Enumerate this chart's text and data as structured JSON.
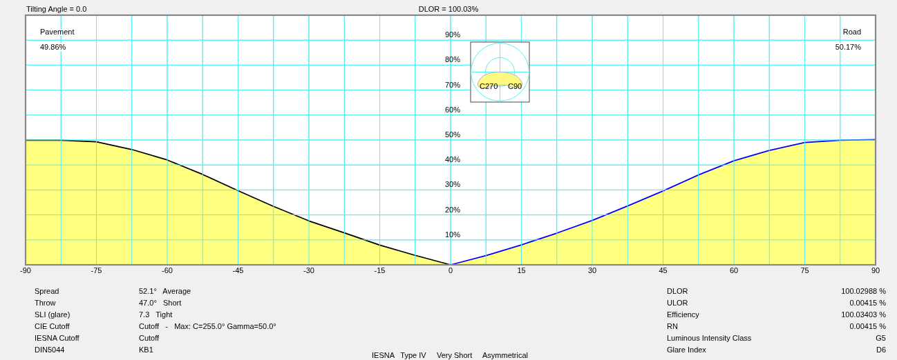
{
  "chart_data": {
    "type": "area",
    "title": "DLOR = 100.03%",
    "series": [
      {
        "color": "#000000",
        "x": [
          -90,
          -82.5,
          -75,
          -67.5,
          -60,
          -52.5,
          -45,
          -37.5,
          -30,
          -22.5,
          -15,
          -7.5,
          0
        ],
        "values": [
          49.9,
          49.9,
          49.3,
          46.2,
          42.0,
          36.2,
          29.7,
          23.4,
          17.6,
          12.8,
          7.9,
          3.8,
          0
        ]
      },
      {
        "color": "#0000ff",
        "x": [
          0,
          7.5,
          15,
          22.5,
          30,
          37.5,
          45,
          52.5,
          60,
          67.5,
          75,
          82.5,
          90
        ],
        "values": [
          0,
          3.7,
          8.0,
          12.7,
          17.8,
          23.6,
          29.6,
          36.0,
          41.7,
          45.8,
          49.0,
          49.9,
          50.2
        ]
      }
    ],
    "xlim": [
      -90,
      90
    ],
    "xticks": [
      -90,
      {
        "value": -82.5,
        "label": null
      },
      -75,
      {
        "value": -67.5,
        "label": null
      },
      -60,
      {
        "value": -52.5,
        "label": null
      },
      -45,
      {
        "value": -37.5,
        "label": null
      },
      -30,
      {
        "value": -22.5,
        "label": null
      },
      -15,
      {
        "value": -7.5,
        "label": null
      },
      0,
      {
        "value": 7.5,
        "label": null
      },
      15,
      {
        "value": 22.5,
        "label": null
      },
      30,
      {
        "value": 37.5,
        "label": null
      },
      45,
      {
        "value": 52.5,
        "label": null
      },
      60,
      {
        "value": 67.5,
        "label": null
      },
      75,
      {
        "value": 82.5,
        "label": null
      },
      90
    ],
    "ylim": [
      0,
      100
    ],
    "yticks": [
      {
        "value": 10,
        "label": "10%"
      },
      {
        "value": 20,
        "label": "20%"
      },
      {
        "value": 30,
        "label": "30%"
      },
      {
        "value": 40,
        "label": "40%"
      },
      {
        "value": 50,
        "label": "50%"
      },
      {
        "value": 60,
        "label": "60%"
      },
      {
        "value": 70,
        "label": "70%"
      },
      {
        "value": 80,
        "label": "80%"
      },
      {
        "value": 90,
        "label": "90%"
      }
    ],
    "grid": true,
    "annotations": [
      "Tilting Angle = 0.0",
      "Pavement",
      "49.86%",
      "Road",
      "50.17%",
      "C270",
      "C90",
      "Spread",
      "52.1°   Average",
      "Throw",
      "47.0°   Short",
      "SLI (glare)",
      "7.3   Tight",
      "CIE Cutoff",
      "Cutoff   -   Max: C=255.0° Gamma=50.0°",
      "IESNA Cutoff",
      "Cutoff",
      "DIN5044",
      "KB1",
      "DLOR",
      "100.02988 %",
      "ULOR",
      "0.00415 %",
      "Efficiency",
      "100.03403 %",
      "RN",
      "0.00415 %",
      "Luminous Intensity Class",
      "G5",
      "Glare Index",
      "D6",
      "IESNA   Type IV     Very Short     Asymmetrical"
    ]
  }
}
